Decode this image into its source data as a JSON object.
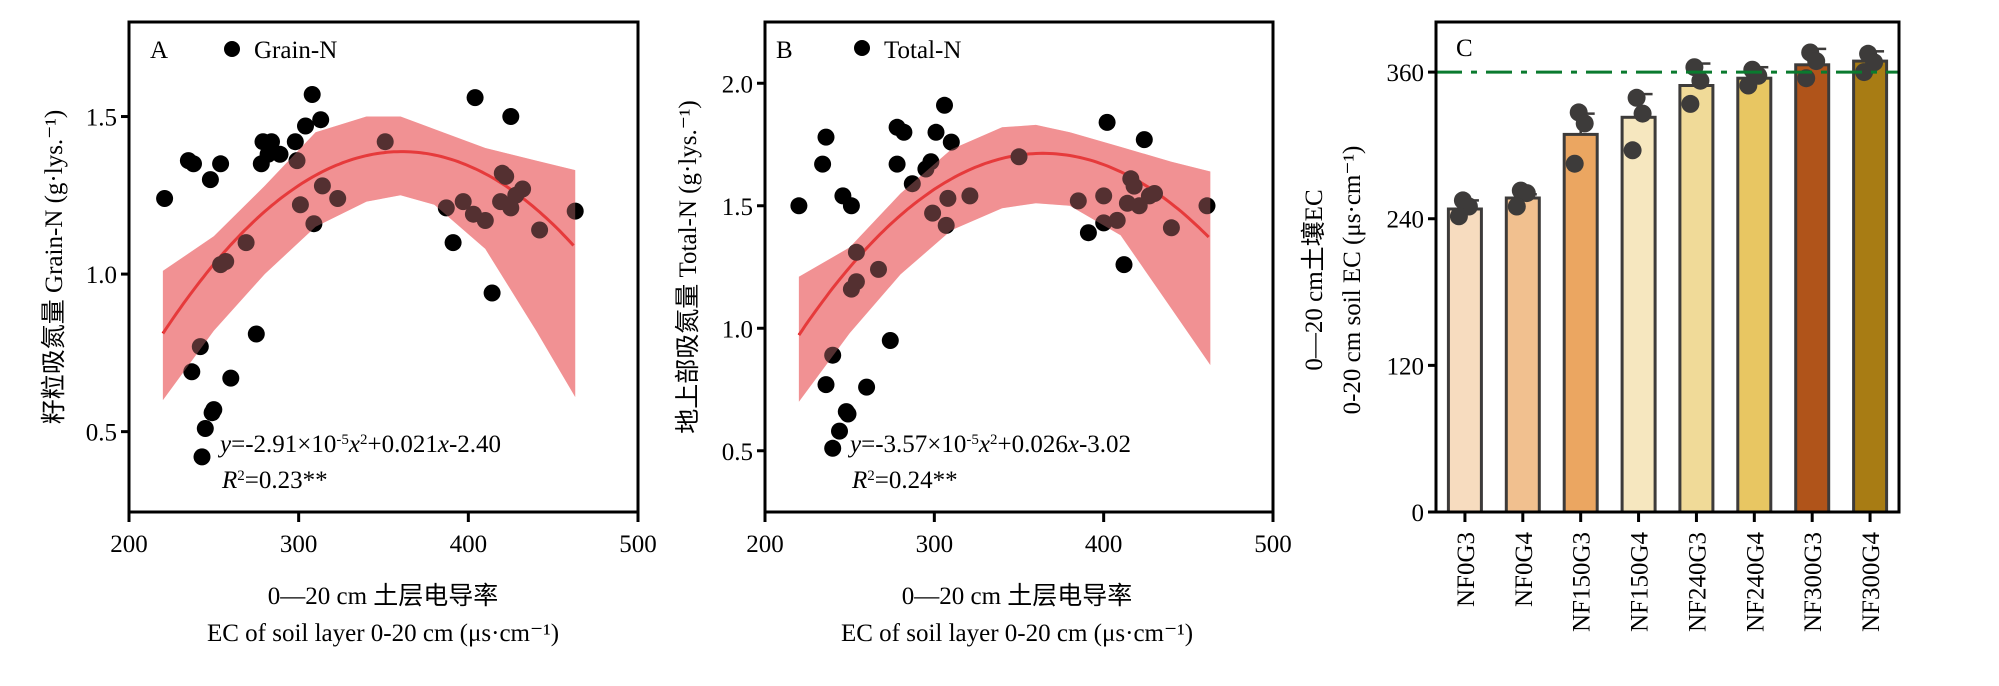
{
  "chart_data": [
    {
      "id": "A",
      "type": "scatter",
      "panel_label": "A",
      "legend": "Grain-N",
      "legend_placement": "top-left",
      "xlabel_cn": "0—20 cm 土层电导率",
      "xlabel_en": "EC of soil layer 0-20 cm (μs·cm⁻¹)",
      "ylabel": "籽粒吸氮量 Grain-N (g·lys.⁻¹)",
      "xlim": [
        200,
        500
      ],
      "ylim": [
        0.245,
        1.8
      ],
      "xticks": [
        200,
        300,
        400,
        500
      ],
      "yticks": [
        0.5,
        1.0,
        1.5
      ],
      "ytick_labels": [
        "0.5",
        "1.0",
        "1.5"
      ],
      "fit": {
        "a": -2.91e-05,
        "b": 0.021,
        "c": -2.4,
        "x_range": [
          220,
          463
        ]
      },
      "equation": "y=-2.91×10⁻⁵x²+0.021x-2.40",
      "r2_text": "R²=0.23**",
      "ci_band": {
        "x": [
          220,
          250,
          280,
          310,
          340,
          360,
          380,
          410,
          440,
          463
        ],
        "lower": [
          0.6,
          0.82,
          1.0,
          1.15,
          1.23,
          1.25,
          1.22,
          1.08,
          0.82,
          0.61
        ],
        "upper": [
          1.01,
          1.12,
          1.28,
          1.45,
          1.5,
          1.5,
          1.46,
          1.4,
          1.36,
          1.33
        ]
      },
      "points": [
        [
          221,
          1.24
        ],
        [
          235,
          1.36
        ],
        [
          238,
          1.35
        ],
        [
          248,
          1.3
        ],
        [
          254,
          1.35
        ],
        [
          242,
          0.77
        ],
        [
          237,
          0.69
        ],
        [
          260,
          0.67
        ],
        [
          275,
          0.81
        ],
        [
          245,
          0.51
        ],
        [
          249,
          0.56
        ],
        [
          250,
          0.57
        ],
        [
          243,
          0.42
        ],
        [
          254,
          1.03
        ],
        [
          257,
          1.04
        ],
        [
          269,
          1.1
        ],
        [
          279,
          1.42
        ],
        [
          284,
          1.42
        ],
        [
          278,
          1.35
        ],
        [
          282,
          1.38
        ],
        [
          289,
          1.38
        ],
        [
          298,
          1.42
        ],
        [
          304,
          1.47
        ],
        [
          308,
          1.57
        ],
        [
          313,
          1.49
        ],
        [
          299,
          1.36
        ],
        [
          301,
          1.22
        ],
        [
          314,
          1.28
        ],
        [
          323,
          1.24
        ],
        [
          309,
          1.16
        ],
        [
          351,
          1.42
        ],
        [
          397,
          1.23
        ],
        [
          387,
          1.21
        ],
        [
          391,
          1.1
        ],
        [
          403,
          1.19
        ],
        [
          404,
          1.56
        ],
        [
          410,
          1.17
        ],
        [
          419,
          1.23
        ],
        [
          420,
          1.32
        ],
        [
          422,
          1.31
        ],
        [
          414,
          0.94
        ],
        [
          425,
          1.5
        ],
        [
          432,
          1.27
        ],
        [
          428,
          1.25
        ],
        [
          425,
          1.21
        ],
        [
          442,
          1.14
        ],
        [
          463,
          1.2
        ]
      ]
    },
    {
      "id": "B",
      "type": "scatter",
      "panel_label": "B",
      "legend": "Total-N",
      "legend_placement": "top-left",
      "xlabel_cn": "0—20 cm 土层电导率",
      "xlabel_en": "EC of soil layer 0-20 cm (μs·cm⁻¹)",
      "ylabel": "地上部吸氮量 Total-N (g·lys.⁻¹)",
      "xlim": [
        200,
        500
      ],
      "ylim": [
        0.25,
        2.25
      ],
      "xticks": [
        200,
        300,
        400,
        500
      ],
      "yticks": [
        0.5,
        1.0,
        1.5,
        2.0
      ],
      "ytick_labels": [
        "0.5",
        "1.0",
        "1.5",
        "2.0"
      ],
      "fit": {
        "a": -3.57e-05,
        "b": 0.026,
        "c": -3.02,
        "x_range": [
          220,
          463
        ]
      },
      "equation": "y=-3.57×10⁻⁵x²+0.026x-3.02",
      "r2_text": "R²=0.24**",
      "ci_band": {
        "x": [
          220,
          250,
          280,
          310,
          340,
          360,
          380,
          410,
          440,
          463
        ],
        "lower": [
          0.7,
          0.98,
          1.22,
          1.4,
          1.49,
          1.51,
          1.5,
          1.38,
          1.08,
          0.85
        ],
        "upper": [
          1.21,
          1.33,
          1.55,
          1.73,
          1.82,
          1.83,
          1.8,
          1.74,
          1.68,
          1.64
        ]
      },
      "points": [
        [
          220,
          1.5
        ],
        [
          236,
          1.78
        ],
        [
          234,
          1.67
        ],
        [
          246,
          1.54
        ],
        [
          251,
          1.5
        ],
        [
          240,
          0.89
        ],
        [
          236,
          0.77
        ],
        [
          260,
          0.76
        ],
        [
          274,
          0.95
        ],
        [
          244,
          0.58
        ],
        [
          248,
          0.66
        ],
        [
          249,
          0.65
        ],
        [
          240,
          0.51
        ],
        [
          251,
          1.16
        ],
        [
          254,
          1.19
        ],
        [
          254,
          1.31
        ],
        [
          267,
          1.24
        ],
        [
          278,
          1.82
        ],
        [
          282,
          1.8
        ],
        [
          278,
          1.67
        ],
        [
          287,
          1.59
        ],
        [
          298,
          1.68
        ],
        [
          301,
          1.8
        ],
        [
          306,
          1.91
        ],
        [
          310,
          1.76
        ],
        [
          299,
          1.47
        ],
        [
          308,
          1.53
        ],
        [
          321,
          1.54
        ],
        [
          307,
          1.42
        ],
        [
          295,
          1.65
        ],
        [
          350,
          1.7
        ],
        [
          385,
          1.52
        ],
        [
          391,
          1.39
        ],
        [
          400,
          1.43
        ],
        [
          400,
          1.54
        ],
        [
          402,
          1.84
        ],
        [
          408,
          1.44
        ],
        [
          412,
          1.26
        ],
        [
          414,
          1.51
        ],
        [
          416,
          1.61
        ],
        [
          418,
          1.58
        ],
        [
          424,
          1.77
        ],
        [
          421,
          1.5
        ],
        [
          427,
          1.54
        ],
        [
          430,
          1.55
        ],
        [
          440,
          1.41
        ],
        [
          461,
          1.5
        ]
      ]
    },
    {
      "id": "C",
      "type": "bar",
      "panel_label": "C",
      "ylabel_cn": "0—20 cm土壤EC",
      "ylabel_en": "0-20 cm soil EC (μs·cm⁻¹)",
      "ylim": [
        0,
        401
      ],
      "yticks": [
        0,
        120,
        240,
        360
      ],
      "reference_line": {
        "y": 360,
        "color": "#0a7a2e",
        "style": "dash-dot"
      },
      "categories": [
        "NF0G3",
        "NF0G4",
        "NF150G3",
        "NF150G4",
        "NF240G3",
        "NF240G4",
        "NF300G3",
        "NF300G4"
      ],
      "values": [
        248,
        257,
        309,
        323,
        349,
        355,
        366,
        369
      ],
      "error_top": [
        255,
        260,
        326,
        342,
        367,
        364,
        379,
        377
      ],
      "colors": [
        "#f7dcbf",
        "#f1c08f",
        "#eba661",
        "#f6e7bf",
        "#f0da98",
        "#e8c662",
        "#b0541a",
        "#a87c14"
      ],
      "replicates": [
        [
          255,
          250,
          242
        ],
        [
          263,
          261,
          250
        ],
        [
          327,
          318,
          285
        ],
        [
          339,
          326,
          296
        ],
        [
          364,
          353,
          334
        ],
        [
          362,
          357,
          349
        ],
        [
          376,
          369,
          355
        ],
        [
          375,
          368,
          360
        ]
      ]
    }
  ],
  "styles": {
    "fit_color": "#e01010",
    "band_color": "#f08a8c",
    "point_color": "#000000",
    "bar_point_color": "#3d3b3a",
    "bar_edge_color": "#3d3b3a"
  }
}
